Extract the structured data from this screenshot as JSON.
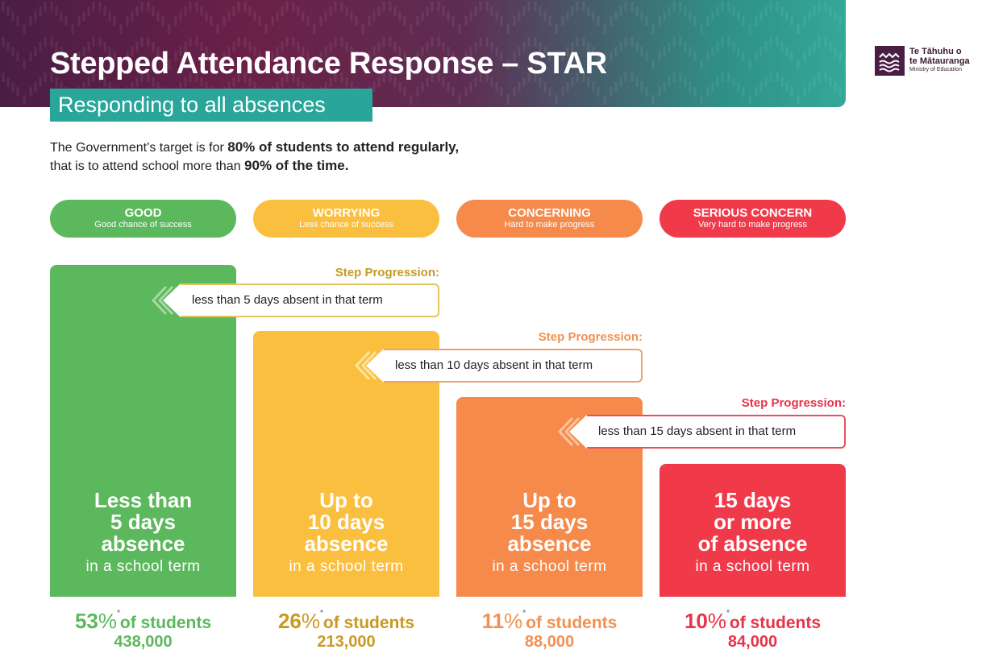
{
  "header": {
    "title_main": "Stepped Attendance Response – ",
    "title_bold": "STAR",
    "subtitle": "Responding to all absences"
  },
  "logo": {
    "line1": "Te Tāhuhu o",
    "line2": "te Mātauranga",
    "line3": "Ministry of Education"
  },
  "intro": {
    "line1_a": "The Government’s target is for ",
    "line1_b": "80% of students to attend regularly,",
    "line2_a": "that is to attend school more than ",
    "line2_b": "90% of the time."
  },
  "categories": [
    {
      "title": "GOOD",
      "subtitle": "Good chance of success",
      "color": "#5cb85c"
    },
    {
      "title": "WORRYING",
      "subtitle": "Less chance of success",
      "color": "#fbbf3f"
    },
    {
      "title": "CONCERNING",
      "subtitle": "Hard to make progress",
      "color": "#f58a4b"
    },
    {
      "title": "SERIOUS CONCERN",
      "subtitle": "Very hard to make progress",
      "color": "#f03a4a"
    }
  ],
  "steps": [
    {
      "label": "Step Progression:",
      "text": "less than 5 days absent in that term"
    },
    {
      "label": "Step Progression:",
      "text": "less than 10 days absent in that term"
    },
    {
      "label": "Step Progression:",
      "text": "less than 15 days absent in that term"
    }
  ],
  "columns": [
    {
      "l1": "Less than",
      "l2": "5 days",
      "l3": "absence",
      "sub": "in a school term"
    },
    {
      "l1": "Up to",
      "l2": "10 days",
      "l3": "absence",
      "sub": "in a school term"
    },
    {
      "l1": "Up to",
      "l2": "15 days",
      "l3": "absence",
      "sub": "in a school term"
    },
    {
      "l1": "15 days",
      "l2": "or more",
      "l3": "of absence",
      "sub": "in a school term"
    }
  ],
  "stats": [
    {
      "pct": "53",
      "sym": "%",
      "ast": "*",
      "of": "of students",
      "num": "438,000",
      "color": "#5cb85c"
    },
    {
      "pct": "26",
      "sym": "%",
      "ast": "*",
      "of": "of students",
      "num": "213,000",
      "color": "#c99a22"
    },
    {
      "pct": "11",
      "sym": "%",
      "ast": "*",
      "of": "of students",
      "num": "88,000",
      "color": "#f29152"
    },
    {
      "pct": "10",
      "sym": "%",
      "ast": "*",
      "of": "of students",
      "num": "84,000",
      "color": "#e8334a"
    }
  ]
}
